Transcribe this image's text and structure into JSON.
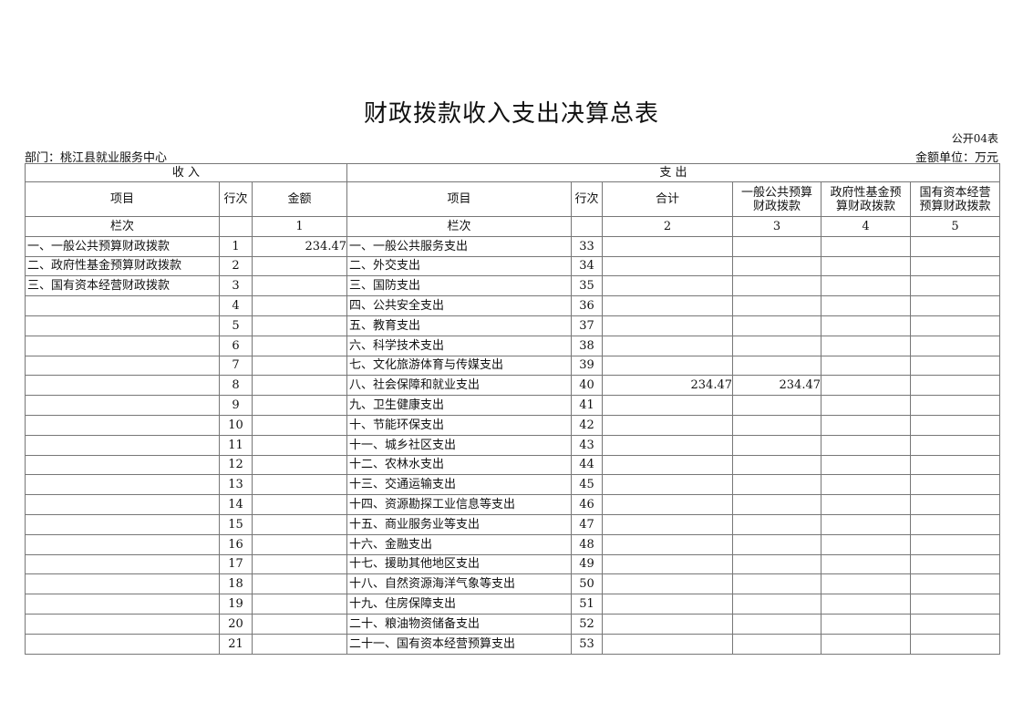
{
  "title": "财政拨款收入支出决算总表",
  "table_code": "公开04表",
  "department": "部门：桃江县就业服务中心",
  "unit": "金额单位：万元",
  "header": {
    "income": "收 入",
    "expense": "支 出",
    "item": "项目",
    "line": "行次",
    "amount": "金额",
    "exp_item": "项目",
    "exp_line": "行次",
    "total": "合计",
    "general": "一般公共预算财政拨款",
    "fund": "政府性基金预算财政拨款",
    "state": "国有资本经营预算财政拨款",
    "col_label": "栏次",
    "col1": "1",
    "exp_col_label": "栏次",
    "col2": "2",
    "col3": "3",
    "col4": "4",
    "col5": "5"
  },
  "rows": [
    {
      "in_item": "一、一般公共预算财政拨款",
      "in_line": "1",
      "in_amount": "234.47",
      "out_item": "一、一般公共服务支出",
      "out_line": "33",
      "total": "",
      "general": "",
      "fund": "",
      "state": ""
    },
    {
      "in_item": "二、政府性基金预算财政拨款",
      "in_line": "2",
      "in_amount": "",
      "out_item": "二、外交支出",
      "out_line": "34",
      "total": "",
      "general": "",
      "fund": "",
      "state": ""
    },
    {
      "in_item": "三、国有资本经营财政拨款",
      "in_line": "3",
      "in_amount": "",
      "out_item": "三、国防支出",
      "out_line": "35",
      "total": "",
      "general": "",
      "fund": "",
      "state": ""
    },
    {
      "in_item": "",
      "in_line": "4",
      "in_amount": "",
      "out_item": "四、公共安全支出",
      "out_line": "36",
      "total": "",
      "general": "",
      "fund": "",
      "state": ""
    },
    {
      "in_item": "",
      "in_line": "5",
      "in_amount": "",
      "out_item": "五、教育支出",
      "out_line": "37",
      "total": "",
      "general": "",
      "fund": "",
      "state": ""
    },
    {
      "in_item": "",
      "in_line": "6",
      "in_amount": "",
      "out_item": "六、科学技术支出",
      "out_line": "38",
      "total": "",
      "general": "",
      "fund": "",
      "state": ""
    },
    {
      "in_item": "",
      "in_line": "7",
      "in_amount": "",
      "out_item": "七、文化旅游体育与传媒支出",
      "out_line": "39",
      "total": "",
      "general": "",
      "fund": "",
      "state": ""
    },
    {
      "in_item": "",
      "in_line": "8",
      "in_amount": "",
      "out_item": "八、社会保障和就业支出",
      "out_line": "40",
      "total": "234.47",
      "general": "234.47",
      "fund": "",
      "state": ""
    },
    {
      "in_item": "",
      "in_line": "9",
      "in_amount": "",
      "out_item": "九、卫生健康支出",
      "out_line": "41",
      "total": "",
      "general": "",
      "fund": "",
      "state": ""
    },
    {
      "in_item": "",
      "in_line": "10",
      "in_amount": "",
      "out_item": "十、节能环保支出",
      "out_line": "42",
      "total": "",
      "general": "",
      "fund": "",
      "state": ""
    },
    {
      "in_item": "",
      "in_line": "11",
      "in_amount": "",
      "out_item": "十一、城乡社区支出",
      "out_line": "43",
      "total": "",
      "general": "",
      "fund": "",
      "state": ""
    },
    {
      "in_item": "",
      "in_line": "12",
      "in_amount": "",
      "out_item": "十二、农林水支出",
      "out_line": "44",
      "total": "",
      "general": "",
      "fund": "",
      "state": ""
    },
    {
      "in_item": "",
      "in_line": "13",
      "in_amount": "",
      "out_item": "十三、交通运输支出",
      "out_line": "45",
      "total": "",
      "general": "",
      "fund": "",
      "state": ""
    },
    {
      "in_item": "",
      "in_line": "14",
      "in_amount": "",
      "out_item": "十四、资源勘探工业信息等支出",
      "out_line": "46",
      "total": "",
      "general": "",
      "fund": "",
      "state": ""
    },
    {
      "in_item": "",
      "in_line": "15",
      "in_amount": "",
      "out_item": "十五、商业服务业等支出",
      "out_line": "47",
      "total": "",
      "general": "",
      "fund": "",
      "state": ""
    },
    {
      "in_item": "",
      "in_line": "16",
      "in_amount": "",
      "out_item": "十六、金融支出",
      "out_line": "48",
      "total": "",
      "general": "",
      "fund": "",
      "state": ""
    },
    {
      "in_item": "",
      "in_line": "17",
      "in_amount": "",
      "out_item": "十七、援助其他地区支出",
      "out_line": "49",
      "total": "",
      "general": "",
      "fund": "",
      "state": ""
    },
    {
      "in_item": "",
      "in_line": "18",
      "in_amount": "",
      "out_item": "十八、自然资源海洋气象等支出",
      "out_line": "50",
      "total": "",
      "general": "",
      "fund": "",
      "state": ""
    },
    {
      "in_item": "",
      "in_line": "19",
      "in_amount": "",
      "out_item": "十九、住房保障支出",
      "out_line": "51",
      "total": "",
      "general": "",
      "fund": "",
      "state": ""
    },
    {
      "in_item": "",
      "in_line": "20",
      "in_amount": "",
      "out_item": "二十、粮油物资储备支出",
      "out_line": "52",
      "total": "",
      "general": "",
      "fund": "",
      "state": ""
    },
    {
      "in_item": "",
      "in_line": "21",
      "in_amount": "",
      "out_item": "二十一、国有资本经营预算支出",
      "out_line": "53",
      "total": "",
      "general": "",
      "fund": "",
      "state": ""
    }
  ]
}
